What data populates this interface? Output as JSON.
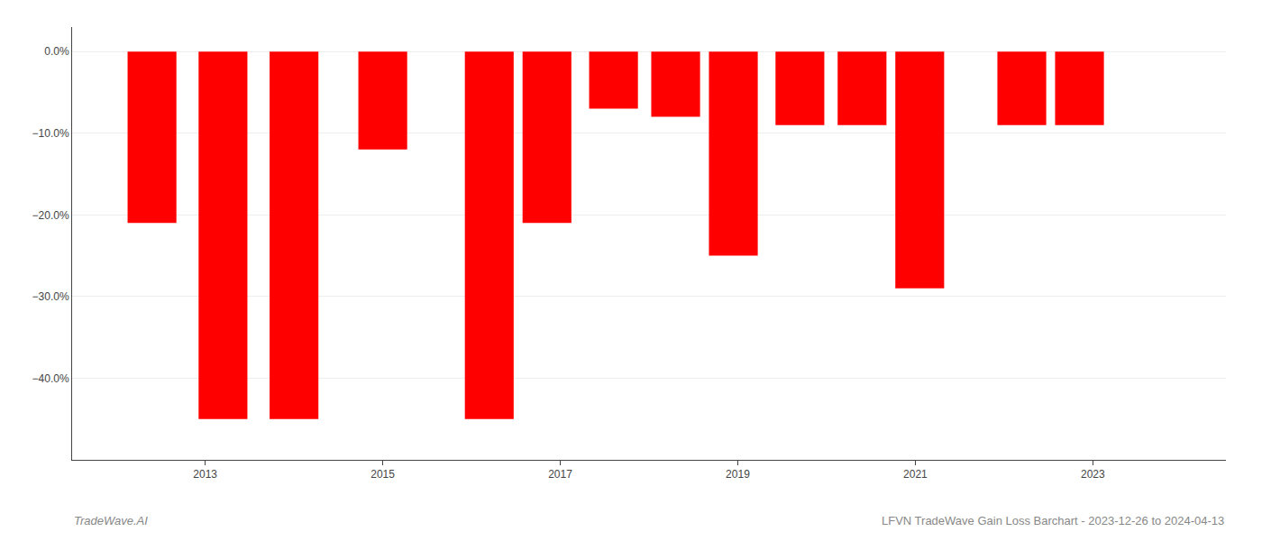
{
  "chart_data": {
    "type": "bar",
    "x": [
      2012.4,
      2013.2,
      2014.0,
      2015.0,
      2016.2,
      2016.85,
      2017.6,
      2018.3,
      2018.95,
      2019.7,
      2020.4,
      2021.05,
      2022.2,
      2022.85
    ],
    "values": [
      -21.0,
      -45.0,
      -45.0,
      -12.0,
      -45.0,
      -21.0,
      -7.0,
      -8.0,
      -25.0,
      -9.0,
      -9.0,
      -29.0,
      -9.0,
      -9.0
    ],
    "color": "#ff0000",
    "xlim": [
      2011.5,
      2024.5
    ],
    "xticks": [
      2013,
      2015,
      2017,
      2019,
      2021,
      2023
    ],
    "ylim": [
      -50,
      3
    ],
    "yticks": [
      {
        "value": 0,
        "label": "0.0%"
      },
      {
        "value": -10,
        "label": "−10.0%"
      },
      {
        "value": -20,
        "label": "−20.0%"
      },
      {
        "value": -30,
        "label": "−30.0%"
      },
      {
        "value": -40,
        "label": "−40.0%"
      }
    ],
    "grid": true,
    "annotations": [
      "TradeWave.AI",
      "LFVN TradeWave Gain Loss Barchart - 2023-12-26 to 2024-04-13"
    ]
  }
}
